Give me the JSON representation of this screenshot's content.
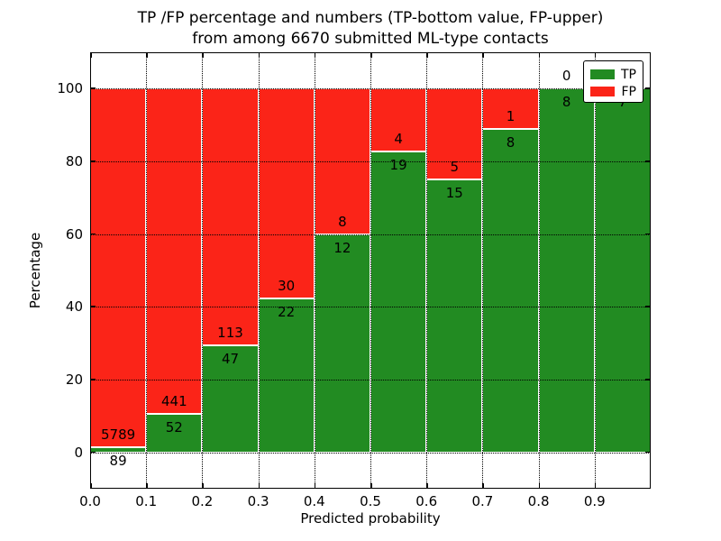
{
  "title": {
    "line1": "TP /FP percentage and numbers (TP-bottom value, FP-upper)",
    "line2": "from among 6670 submitted ML-type contacts"
  },
  "legend": {
    "items": [
      {
        "label": "TP",
        "color": "#228b22"
      },
      {
        "label": "FP",
        "color": "#fb2418"
      }
    ]
  },
  "colors": {
    "tp": "#228b22",
    "fp": "#fb2418",
    "axis": "#000000",
    "background": "#ffffff"
  },
  "chart_data": {
    "type": "bar",
    "stacked": true,
    "units": "percent",
    "title": "TP /FP percentage and numbers (TP-bottom value, FP-upper) from among 6670 submitted ML-type contacts",
    "xlabel": "Predicted probability",
    "ylabel": "Percentage",
    "x_tick_labels": [
      "0.0",
      "0.1",
      "0.2",
      "0.3",
      "0.4",
      "0.5",
      "0.6",
      "0.7",
      "0.8",
      "0.9"
    ],
    "y_ticks": [
      0,
      20,
      40,
      60,
      80,
      100
    ],
    "xlim": [
      0.0,
      1.0
    ],
    "ylim": [
      -10,
      110
    ],
    "bin_width": 0.1,
    "grid": true,
    "legend_position": "upper right",
    "categories": [
      "0.0-0.1",
      "0.1-0.2",
      "0.2-0.3",
      "0.3-0.4",
      "0.4-0.5",
      "0.5-0.6",
      "0.6-0.7",
      "0.7-0.8",
      "0.8-0.9",
      "0.9-1.0"
    ],
    "series": [
      {
        "name": "TP",
        "color": "#228b22",
        "counts": [
          89,
          52,
          47,
          22,
          12,
          19,
          15,
          8,
          8,
          7
        ],
        "count_labels": [
          "89",
          "52",
          "47",
          "22",
          "12",
          "19",
          "15",
          "8",
          "8",
          "7"
        ],
        "pct": [
          1.514,
          10.548,
          29.375,
          42.308,
          60.0,
          82.609,
          75.0,
          88.889,
          100.0,
          100.0
        ]
      },
      {
        "name": "FP",
        "color": "#fb2418",
        "count_labels": [
          "5789",
          "441",
          "113",
          "30",
          "8",
          "4",
          "5",
          "1",
          "0",
          ""
        ],
        "pct": [
          98.486,
          89.452,
          70.625,
          57.692,
          40.0,
          17.391,
          25.0,
          11.111,
          0.0,
          0.0
        ]
      }
    ]
  }
}
